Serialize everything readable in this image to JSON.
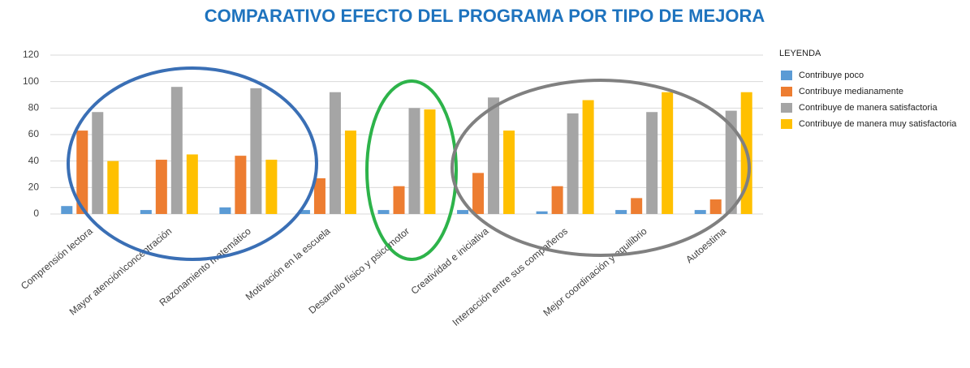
{
  "chart_data": {
    "type": "bar",
    "title": "COMPARATIVO EFECTO DEL PROGRAMA POR TIPO DE MEJORA",
    "legend_title": "LEYENDA",
    "categories": [
      "Comprensión lectora",
      "Mayor atención\\concentración",
      "Razonamiento matemático",
      "Motivación en la escuela",
      "Desarrollo físico y psicomotor",
      "Creatividad e iniciativa",
      "Interacción entre sus compañeros",
      "Mejor coordinación y equilibrio",
      "Autoestima"
    ],
    "series": [
      {
        "name": "Contribuye poco",
        "color": "#5b9bd5",
        "values": [
          6,
          3,
          5,
          3,
          3,
          3,
          2,
          3,
          3
        ]
      },
      {
        "name": "Contribuye medianamente",
        "color": "#ed7d31",
        "values": [
          63,
          41,
          44,
          27,
          21,
          31,
          21,
          12,
          11
        ]
      },
      {
        "name": "Contribuye de manera satisfactoria",
        "color": "#a5a5a5",
        "values": [
          77,
          96,
          95,
          92,
          80,
          88,
          76,
          77,
          78
        ]
      },
      {
        "name": "Contribuye de manera muy satisfactoria",
        "color": "#ffc000",
        "values": [
          40,
          45,
          41,
          63,
          79,
          63,
          86,
          92,
          92
        ]
      }
    ],
    "ylim": [
      0,
      120
    ],
    "yticks": [
      0,
      20,
      40,
      60,
      80,
      100,
      120
    ],
    "grid": true,
    "legend": "right"
  }
}
